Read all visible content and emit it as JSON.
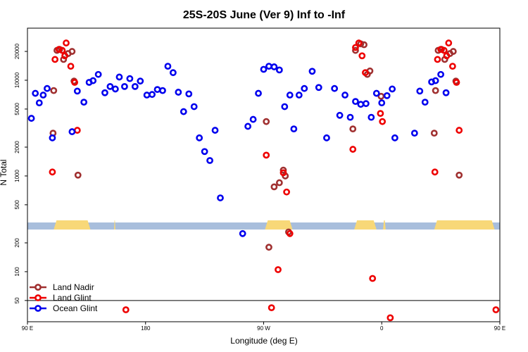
{
  "chart_data": {
    "type": "scatter",
    "title": "25S-20S June (Ver 9)   Inf to -Inf",
    "xlabel": "Longitude (deg E)",
    "ylabel": "N Total",
    "y_scale": "log",
    "xlim": [
      90,
      450
    ],
    "ylim": [
      30,
      35000
    ],
    "x_ticks": [
      {
        "value": 90,
        "label": "90 E"
      },
      {
        "value": 180,
        "label": "180"
      },
      {
        "value": 270,
        "label": "90 W"
      },
      {
        "value": 360,
        "label": "0"
      },
      {
        "value": 450,
        "label": "90 E"
      },
      {
        "value": 540,
        "label": "180"
      }
    ],
    "y_ticks": [
      {
        "value": 50,
        "label": "50"
      },
      {
        "value": 100,
        "label": "100"
      },
      {
        "value": 200,
        "label": "200"
      },
      {
        "value": 500,
        "label": "500"
      },
      {
        "value": 1000,
        "label": "1000"
      },
      {
        "value": 2000,
        "label": "2000"
      },
      {
        "value": 5000,
        "label": "5000"
      },
      {
        "value": 10000,
        "label": "10000"
      },
      {
        "value": 20000,
        "label": "20000"
      }
    ],
    "legend_position": "bottom-left",
    "land_bar": {
      "y_value": 300,
      "ocean_color": "#a8bedc",
      "land_color": "#f8d878",
      "land_segments": [
        [
          110,
          138
        ],
        [
          156,
          157
        ],
        [
          271,
          292
        ],
        [
          339,
          356
        ],
        [
          361,
          363
        ],
        [
          400,
          446
        ]
      ]
    },
    "series": [
      {
        "name": "Land Nadir",
        "color": "#a03030",
        "points": [
          [
            109.5,
            2800
          ],
          [
            110,
            7800
          ],
          [
            112.5,
            20500
          ],
          [
            114.5,
            21000
          ],
          [
            117.5,
            16500
          ],
          [
            121,
            19000
          ],
          [
            124,
            20000
          ],
          [
            125.5,
            9800
          ],
          [
            128.5,
            1020
          ],
          [
            272,
            3700
          ],
          [
            278,
            770
          ],
          [
            282,
            850
          ],
          [
            285,
            1150
          ],
          [
            286.5,
            1000
          ],
          [
            289,
            260
          ],
          [
            274,
            180
          ],
          [
            338,
            3100
          ],
          [
            340,
            20500
          ],
          [
            344,
            24000
          ],
          [
            346.5,
            23500
          ],
          [
            349,
            11500
          ],
          [
            351,
            12500
          ],
          [
            359.5,
            6800
          ],
          [
            400,
            2800
          ],
          [
            401,
            7800
          ],
          [
            403,
            20500
          ],
          [
            405.5,
            21000
          ],
          [
            408,
            16500
          ],
          [
            412,
            19000
          ],
          [
            414.5,
            20000
          ],
          [
            416.5,
            9800
          ],
          [
            419,
            1020
          ]
        ]
      },
      {
        "name": "Land Glint",
        "color": "#ee0000",
        "points": [
          [
            109,
            1100
          ],
          [
            111,
            16500
          ],
          [
            114,
            21000
          ],
          [
            116.5,
            20500
          ],
          [
            118.5,
            18000
          ],
          [
            119.5,
            24500
          ],
          [
            123,
            14000
          ],
          [
            126,
            9500
          ],
          [
            128,
            3000
          ],
          [
            165,
            40
          ],
          [
            272,
            1650
          ],
          [
            276,
            42
          ],
          [
            281,
            105
          ],
          [
            285,
            1080
          ],
          [
            287.5,
            680
          ],
          [
            290,
            250
          ],
          [
            338,
            1900
          ],
          [
            340,
            22000
          ],
          [
            342.5,
            24500
          ],
          [
            345,
            18000
          ],
          [
            347.5,
            12000
          ],
          [
            353,
            85
          ],
          [
            359,
            4500
          ],
          [
            360.5,
            3700
          ],
          [
            366.5,
            33
          ],
          [
            400.5,
            1100
          ],
          [
            402.5,
            16500
          ],
          [
            405,
            21000
          ],
          [
            407.5,
            20500
          ],
          [
            409.5,
            18000
          ],
          [
            411,
            24500
          ],
          [
            414,
            14000
          ],
          [
            417,
            9500
          ],
          [
            419,
            3000
          ],
          [
            447,
            40
          ]
        ]
      },
      {
        "name": "Ocean Glint",
        "color": "#0000ee",
        "points": [
          [
            93,
            4000
          ],
          [
            96,
            7300
          ],
          [
            99,
            5800
          ],
          [
            102,
            7000
          ],
          [
            105,
            8200
          ],
          [
            109,
            2500
          ],
          [
            124,
            2900
          ],
          [
            128,
            7700
          ],
          [
            133,
            5900
          ],
          [
            137,
            9500
          ],
          [
            140,
            9900
          ],
          [
            144,
            11500
          ],
          [
            149,
            7400
          ],
          [
            153,
            8600
          ],
          [
            157,
            8100
          ],
          [
            160,
            10800
          ],
          [
            164,
            8600
          ],
          [
            168,
            10400
          ],
          [
            172,
            8600
          ],
          [
            176,
            9800
          ],
          [
            181,
            7000
          ],
          [
            185,
            7100
          ],
          [
            189,
            8000
          ],
          [
            193,
            7800
          ],
          [
            197,
            14000
          ],
          [
            201,
            12000
          ],
          [
            205,
            7500
          ],
          [
            209,
            4700
          ],
          [
            213,
            7200
          ],
          [
            217,
            5300
          ],
          [
            221,
            2500
          ],
          [
            225,
            1800
          ],
          [
            229,
            1450
          ],
          [
            233,
            3000
          ],
          [
            237,
            590
          ],
          [
            254,
            250
          ],
          [
            258,
            3300
          ],
          [
            262,
            3900
          ],
          [
            266,
            7300
          ],
          [
            270,
            13000
          ],
          [
            274,
            14000
          ],
          [
            278,
            13800
          ],
          [
            282,
            12800
          ],
          [
            286,
            5300
          ],
          [
            290,
            7000
          ],
          [
            293,
            3100
          ],
          [
            297,
            7000
          ],
          [
            301,
            8200
          ],
          [
            307,
            12400
          ],
          [
            312,
            8400
          ],
          [
            318,
            2500
          ],
          [
            324,
            8200
          ],
          [
            328,
            4300
          ],
          [
            332,
            7000
          ],
          [
            336,
            4100
          ],
          [
            340,
            6000
          ],
          [
            344,
            5600
          ],
          [
            348,
            5700
          ],
          [
            352,
            4100
          ],
          [
            356,
            7300
          ],
          [
            360,
            5800
          ],
          [
            364,
            6900
          ],
          [
            368,
            8100
          ],
          [
            370,
            2500
          ],
          [
            385,
            2800
          ],
          [
            389,
            7700
          ],
          [
            393,
            5900
          ],
          [
            398,
            9600
          ],
          [
            401,
            9900
          ],
          [
            405,
            11500
          ],
          [
            409,
            7400
          ]
        ]
      }
    ]
  }
}
